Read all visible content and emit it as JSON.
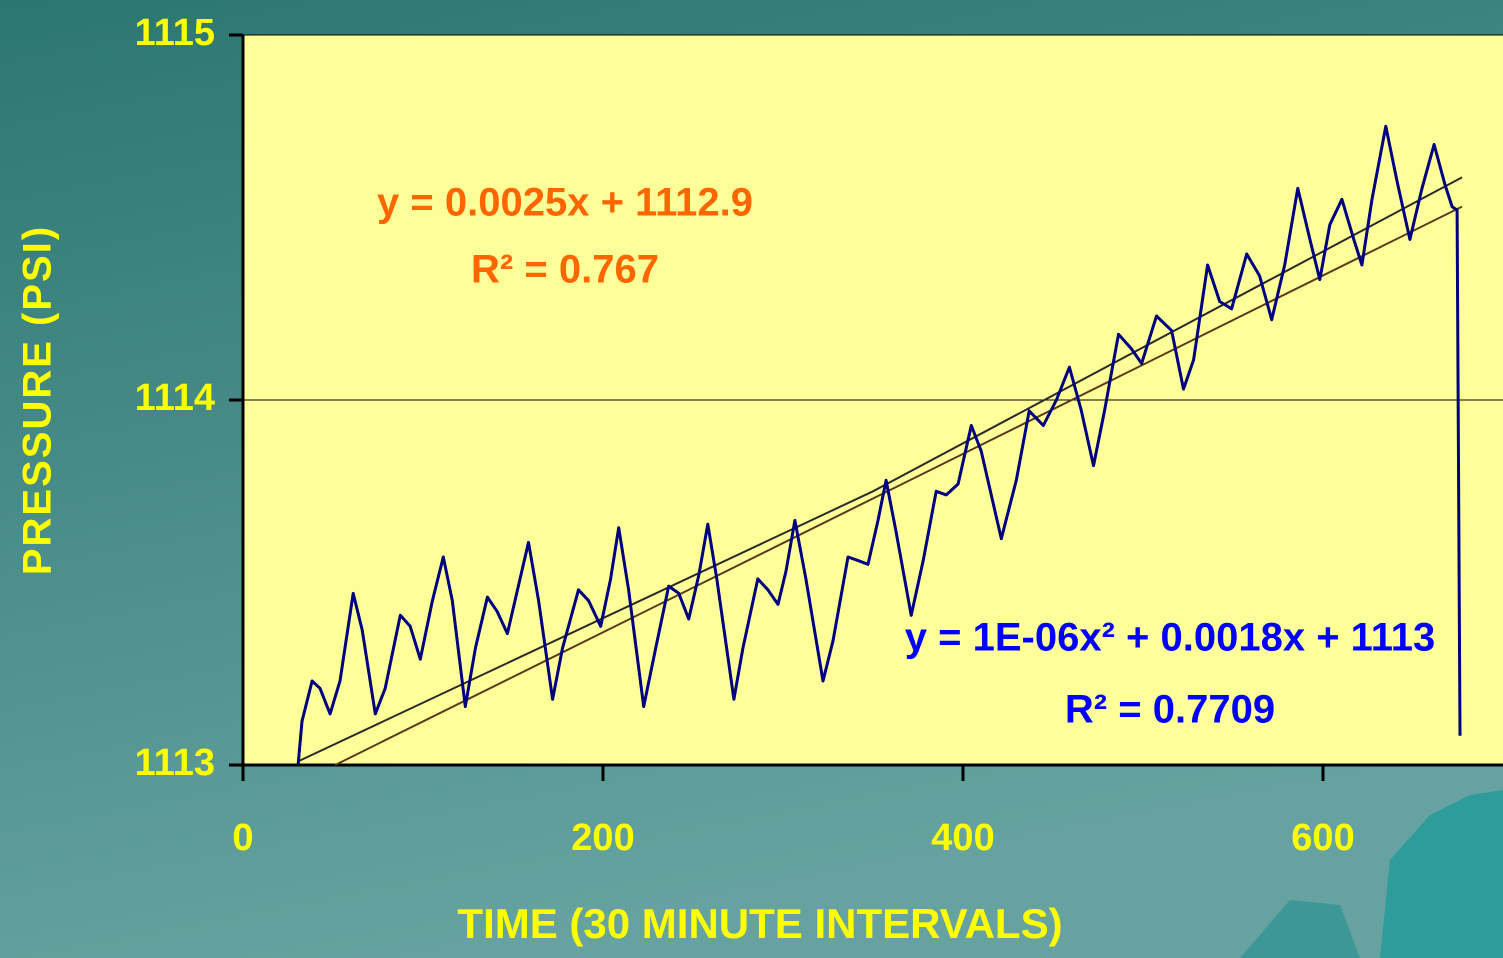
{
  "chart_data": {
    "type": "line",
    "x_label": "TIME (30 MINUTE INTERVALS)",
    "y_label": "PRESSURE (PSI)",
    "xlim": [
      0,
      700
    ],
    "ylim": [
      1113,
      1115
    ],
    "xticks": [
      0,
      200,
      400,
      600
    ],
    "yticks": [
      1113,
      1114,
      1115
    ],
    "grid": true,
    "plot_background": "#ffff99",
    "series": [
      {
        "color": "#000080",
        "x": [
          30.6,
          32.8,
          38.4,
          42.8,
          48.4,
          53.9,
          61.2,
          66.2,
          73.5,
          79.0,
          87.4,
          92.9,
          98.5,
          105.2,
          111.3,
          116.3,
          123.5,
          129.1,
          135.8,
          141.3,
          146.9,
          152.5,
          158.6,
          164.2,
          172.0,
          177.5,
          186.4,
          192.0,
          198.7,
          204.2,
          208.7,
          214.2,
          222.6,
          229.3,
          236.5,
          242.1,
          247.6,
          253.2,
          258.2,
          263.2,
          272.7,
          277.7,
          286.0,
          291.6,
          297.2,
          301.6,
          306.6,
          312.7,
          322.2,
          327.8,
          336.1,
          341.7,
          347.2,
          352.8,
          357.3,
          362.8,
          371.2,
          377.9,
          385.1,
          390.7,
          397.3,
          404.6,
          410.1,
          421.3,
          429.6,
          436.8,
          444.6,
          451.9,
          459.1,
          465.8,
          472.5,
          478.6,
          486.4,
          493.6,
          499.2,
          507.5,
          515.9,
          522.5,
          528.1,
          535.9,
          542.6,
          549.2,
          557.6,
          564.8,
          571.5,
          578.7,
          586.0,
          592.7,
          598.2,
          603.8,
          610.5,
          617.1,
          621.6,
          627.2,
          634.9,
          641.1,
          648.3,
          655.0,
          661.7,
          667.8,
          671.7,
          674.5,
          676.1
        ],
        "values": [
          1113.0,
          1113.12,
          1113.23,
          1113.21,
          1113.14,
          1113.23,
          1113.47,
          1113.37,
          1113.14,
          1113.21,
          1113.41,
          1113.38,
          1113.29,
          1113.45,
          1113.57,
          1113.45,
          1113.16,
          1113.32,
          1113.46,
          1113.42,
          1113.36,
          1113.48,
          1113.61,
          1113.45,
          1113.18,
          1113.32,
          1113.48,
          1113.45,
          1113.38,
          1113.51,
          1113.65,
          1113.48,
          1113.16,
          1113.32,
          1113.49,
          1113.47,
          1113.4,
          1113.52,
          1113.66,
          1113.51,
          1113.18,
          1113.32,
          1113.51,
          1113.48,
          1113.44,
          1113.53,
          1113.67,
          1113.51,
          1113.23,
          1113.34,
          1113.57,
          1113.56,
          1113.55,
          1113.67,
          1113.78,
          1113.64,
          1113.41,
          1113.56,
          1113.75,
          1113.74,
          1113.77,
          1113.93,
          1113.86,
          1113.62,
          1113.78,
          1113.97,
          1113.93,
          1114.0,
          1114.09,
          1113.97,
          1113.82,
          1113.97,
          1114.18,
          1114.14,
          1114.1,
          1114.23,
          1114.19,
          1114.03,
          1114.11,
          1114.37,
          1114.27,
          1114.25,
          1114.4,
          1114.34,
          1114.22,
          1114.37,
          1114.58,
          1114.44,
          1114.33,
          1114.48,
          1114.55,
          1114.44,
          1114.37,
          1114.55,
          1114.75,
          1114.6,
          1114.44,
          1114.58,
          1114.7,
          1114.59,
          1114.53,
          1114.52,
          1113.08
        ]
      }
    ],
    "trendlines": [
      {
        "color": "#5a3a1a",
        "x": [
          51.2,
          677.2
        ],
        "values": [
          1113.0,
          1114.53
        ]
      },
      {
        "color": "#2a2a2a",
        "x": [
          30.6,
          350,
          677.2
        ],
        "values": [
          1113.01,
          1113.75,
          1114.61
        ]
      }
    ],
    "annotations": [
      {
        "text": "y = 0.0025x + 1112.9",
        "color": "#ff6600"
      },
      {
        "text": "R² = 0.767",
        "color": "#ff6600"
      },
      {
        "text": "y = 1E-06x² + 0.0018x + 1113",
        "color": "#0000ff"
      },
      {
        "text": "R² = 0.7709",
        "color": "#0000ff"
      }
    ]
  }
}
